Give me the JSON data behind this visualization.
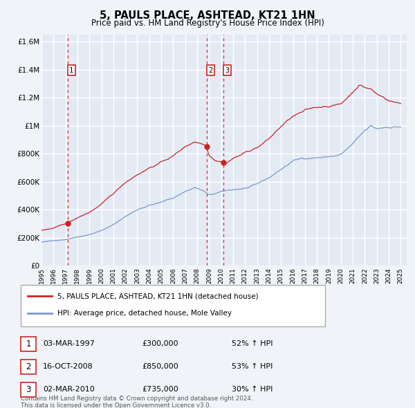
{
  "title": "5, PAULS PLACE, ASHTEAD, KT21 1HN",
  "subtitle": "Price paid vs. HM Land Registry's House Price Index (HPI)",
  "ylim": [
    0,
    1650000
  ],
  "yticks": [
    0,
    200000,
    400000,
    600000,
    800000,
    1000000,
    1200000,
    1400000,
    1600000
  ],
  "ytick_labels": [
    "£0",
    "£200K",
    "£400K",
    "£600K",
    "£800K",
    "£1M",
    "£1.2M",
    "£1.4M",
    "£1.6M"
  ],
  "background_color": "#f0f4f8",
  "plot_bg_color": "#e4eaf4",
  "grid_color": "#ffffff",
  "sale_color": "#cc2222",
  "hpi_color": "#7799cc",
  "vline_color": "#cc2222",
  "purchases": [
    {
      "date_num": 1997.17,
      "price": 300000,
      "label": "1"
    },
    {
      "date_num": 2008.79,
      "price": 850000,
      "label": "2"
    },
    {
      "date_num": 2010.17,
      "price": 735000,
      "label": "3"
    }
  ],
  "legend_sale_label": "5, PAULS PLACE, ASHTEAD, KT21 1HN (detached house)",
  "legend_hpi_label": "HPI: Average price, detached house, Mole Valley",
  "table_rows": [
    {
      "num": "1",
      "date": "03-MAR-1997",
      "price": "£300,000",
      "change": "52% ↑ HPI"
    },
    {
      "num": "2",
      "date": "16-OCT-2008",
      "price": "£850,000",
      "change": "53% ↑ HPI"
    },
    {
      "num": "3",
      "date": "02-MAR-2010",
      "price": "£735,000",
      "change": "30% ↑ HPI"
    }
  ],
  "footnote": "Contains HM Land Registry data © Crown copyright and database right 2024.\nThis data is licensed under the Open Government Licence v3.0.",
  "xlim": [
    1995.0,
    2025.5
  ],
  "xticks": [
    1995,
    1996,
    1997,
    1998,
    1999,
    2000,
    2001,
    2002,
    2003,
    2004,
    2005,
    2006,
    2007,
    2008,
    2009,
    2010,
    2011,
    2012,
    2013,
    2014,
    2015,
    2016,
    2017,
    2018,
    2019,
    2020,
    2021,
    2022,
    2023,
    2024,
    2025
  ]
}
